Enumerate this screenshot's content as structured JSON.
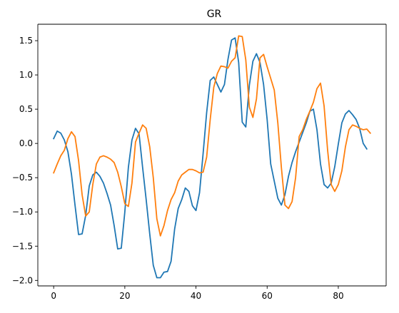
{
  "chart_data": {
    "type": "line",
    "title": "GR",
    "xlabel": "",
    "ylabel": "",
    "xlim": [
      -4.45,
      93.45
    ],
    "ylim": [
      -2.08,
      1.74
    ],
    "xticks": [
      0,
      20,
      40,
      60,
      80
    ],
    "xtick_labels": [
      "0",
      "20",
      "40",
      "60",
      "80"
    ],
    "yticks": [
      -2.0,
      -1.5,
      -1.0,
      -0.5,
      0.0,
      0.5,
      1.0,
      1.5
    ],
    "ytick_labels": [
      "−2.0",
      "−1.5",
      "−1.0",
      "−0.5",
      "0.0",
      "0.5",
      "1.0",
      "1.5"
    ],
    "grid": false,
    "legend": "none",
    "x": [
      0,
      1,
      2,
      3,
      4,
      5,
      6,
      7,
      8,
      9,
      10,
      11,
      12,
      13,
      14,
      15,
      16,
      17,
      18,
      19,
      20,
      21,
      22,
      23,
      24,
      25,
      26,
      27,
      28,
      29,
      30,
      31,
      32,
      33,
      34,
      35,
      36,
      37,
      38,
      39,
      40,
      41,
      42,
      43,
      44,
      45,
      46,
      47,
      48,
      49,
      50,
      51,
      52,
      53,
      54,
      55,
      56,
      57,
      58,
      59,
      60,
      61,
      62,
      63,
      64,
      65,
      66,
      67,
      68,
      69,
      70,
      71,
      72,
      73,
      74,
      75,
      76,
      77,
      78,
      79,
      80,
      81,
      82,
      83,
      84,
      85,
      86,
      87,
      88,
      89
    ],
    "series": [
      {
        "color": "#1f77b4",
        "values": [
          0.07,
          0.18,
          0.15,
          0.05,
          -0.12,
          -0.45,
          -0.9,
          -1.33,
          -1.32,
          -1.05,
          -0.62,
          -0.46,
          -0.42,
          -0.48,
          -0.58,
          -0.73,
          -0.9,
          -1.2,
          -1.54,
          -1.53,
          -1.0,
          -0.35,
          0.05,
          0.22,
          0.14,
          -0.35,
          -0.82,
          -1.32,
          -1.78,
          -1.96,
          -1.96,
          -1.88,
          -1.87,
          -1.72,
          -1.25,
          -0.95,
          -0.82,
          -0.65,
          -0.7,
          -0.91,
          -0.98,
          -0.72,
          -0.15,
          0.45,
          0.92,
          0.97,
          0.86,
          0.75,
          0.86,
          1.23,
          1.51,
          1.54,
          1.18,
          0.31,
          0.24,
          0.85,
          1.2,
          1.31,
          1.18,
          0.86,
          0.35,
          -0.3,
          -0.55,
          -0.8,
          -0.9,
          -0.75,
          -0.48,
          -0.28,
          -0.12,
          0.02,
          0.16,
          0.3,
          0.47,
          0.5,
          0.2,
          -0.3,
          -0.6,
          -0.65,
          -0.58,
          -0.34,
          -0.01,
          0.3,
          0.43,
          0.48,
          0.42,
          0.35,
          0.22,
          0.0,
          -0.08,
          null
        ]
      },
      {
        "color": "#ff7f0e",
        "values": [
          -0.43,
          -0.3,
          -0.18,
          -0.1,
          0.07,
          0.17,
          0.1,
          -0.25,
          -0.75,
          -1.06,
          -1.0,
          -0.6,
          -0.3,
          -0.2,
          -0.18,
          -0.2,
          -0.23,
          -0.28,
          -0.42,
          -0.63,
          -0.88,
          -0.92,
          -0.58,
          0.02,
          0.15,
          0.27,
          0.22,
          -0.05,
          -0.5,
          -1.1,
          -1.35,
          -1.2,
          -0.98,
          -0.82,
          -0.72,
          -0.55,
          -0.46,
          -0.42,
          -0.38,
          -0.38,
          -0.4,
          -0.43,
          -0.42,
          -0.2,
          0.35,
          0.82,
          1.02,
          1.13,
          1.12,
          1.1,
          1.2,
          1.25,
          1.57,
          1.56,
          1.22,
          0.53,
          0.38,
          0.65,
          1.25,
          1.3,
          1.12,
          0.95,
          0.78,
          0.3,
          -0.35,
          -0.9,
          -0.95,
          -0.85,
          -0.5,
          0.1,
          0.2,
          0.35,
          0.47,
          0.6,
          0.8,
          0.88,
          0.55,
          -0.1,
          -0.6,
          -0.7,
          -0.6,
          -0.4,
          -0.05,
          0.2,
          0.27,
          0.25,
          0.22,
          0.2,
          0.21,
          0.15
        ]
      }
    ]
  }
}
